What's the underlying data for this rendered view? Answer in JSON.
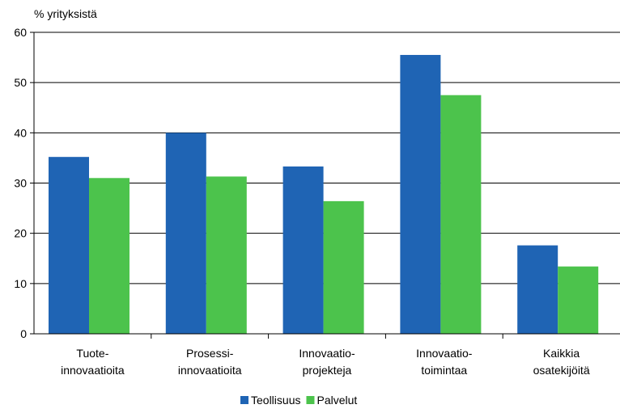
{
  "chart_data": {
    "type": "bar",
    "ylabel": "% yrityksistä",
    "ylim": [
      0,
      60
    ],
    "yticks": [
      0,
      10,
      20,
      30,
      40,
      50,
      60
    ],
    "grid": true,
    "legend_position": "bottom",
    "categories": [
      [
        "Tuote-",
        "innovaatioita"
      ],
      [
        "Prosessi-",
        "innovaatioita"
      ],
      [
        "Innovaatio-",
        "projekteja"
      ],
      [
        "Innovaatio-",
        "toimintaa"
      ],
      [
        "Kaikkia",
        "osatekijöitä"
      ]
    ],
    "series": [
      {
        "name": "Teollisuus",
        "color": "#1f64b4",
        "values": [
          35.2,
          40.0,
          33.3,
          55.5,
          17.6
        ]
      },
      {
        "name": "Palvelut",
        "color": "#4cc34c",
        "values": [
          31.0,
          31.3,
          26.4,
          47.5,
          13.4
        ]
      }
    ]
  }
}
